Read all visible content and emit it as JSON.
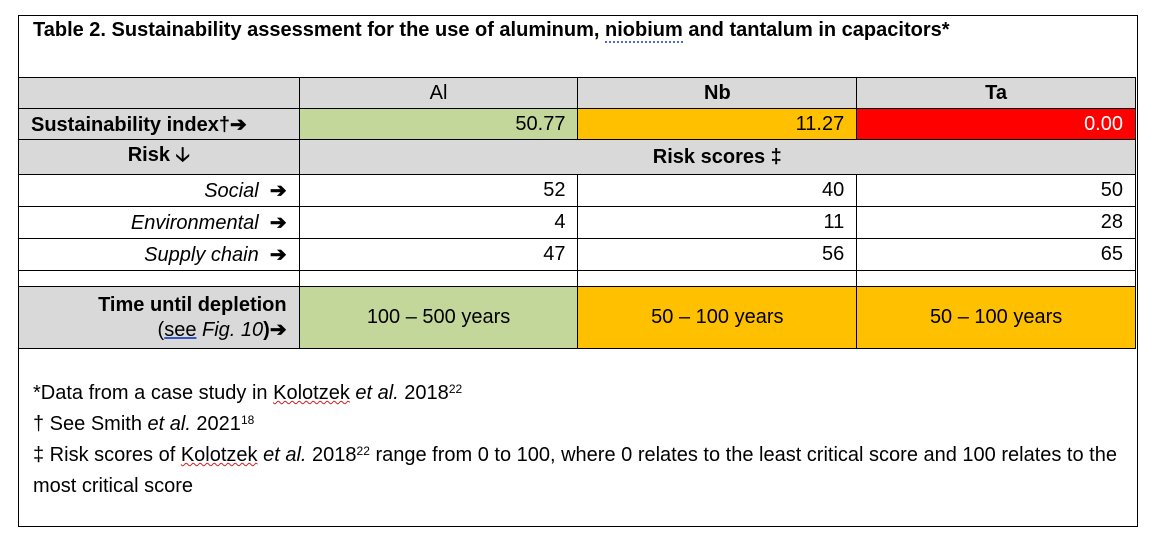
{
  "title": {
    "prefix": "Table 2. Sustainability assessment for the use of aluminum, ",
    "niobium": "niobium",
    "suffix": " and tantalum in capacitors*"
  },
  "columns": [
    "Al",
    "Nb",
    "Ta"
  ],
  "sustainability": {
    "label": "Sustainability index†➔",
    "values": [
      "50.77",
      "11.27",
      "0.00"
    ],
    "colors": [
      "#c4d79b",
      "#ffc000",
      "#ff0000"
    ]
  },
  "risk": {
    "label": "Risk 🡣",
    "scores_label": "Risk scores ‡"
  },
  "rows": [
    {
      "label": "Social",
      "arrow": "➔",
      "values": [
        "52",
        "40",
        "50"
      ]
    },
    {
      "label": "Environmental",
      "arrow": "➔",
      "values": [
        "4",
        "11",
        "28"
      ]
    },
    {
      "label": "Supply chain",
      "arrow": "➔",
      "values": [
        "47",
        "56",
        "65"
      ]
    }
  ],
  "depletion": {
    "label": "Time until depletion",
    "ref_open": "(",
    "ref_see": "see",
    "ref_fig": " Fig. 10",
    "ref_close": ")➔",
    "values": [
      "100 – 500 years",
      "50 – 100 years",
      "50 – 100 years"
    ],
    "colors": [
      "#c4d79b",
      "#ffc000",
      "#ffc000"
    ]
  },
  "notes": {
    "n1_prefix": "*Data from a case study in ",
    "n1_author": "Kolotzek",
    "n1_etal": " et al.",
    "n1_year": " 2018",
    "n1_sup": "22",
    "n2_prefix": "† See ",
    "n2_author": "Smith",
    "n2_etal": " et al.",
    "n2_year": " 2021",
    "n2_sup": "18",
    "n3_prefix": "‡ Risk scores of ",
    "n3_author": "Kolotzek",
    "n3_etal": " et al.",
    "n3_year": " 2018",
    "n3_sup": "22",
    "n3_text": " range from 0 to 100, where 0 relates to the least critical score and 100 relates to the most critical score"
  }
}
